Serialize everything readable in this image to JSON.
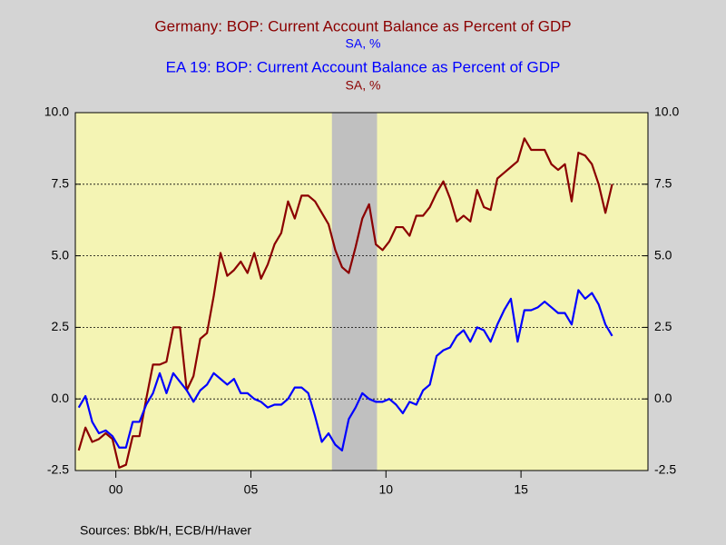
{
  "chart_data": {
    "type": "line",
    "sources": "Sources:  Bbk/H, ECB/H/Haver",
    "x": [
      1998.625,
      1998.875,
      1999.125,
      1999.375,
      1999.625,
      1999.875,
      2000.125,
      2000.375,
      2000.625,
      2000.875,
      2001.125,
      2001.375,
      2001.625,
      2001.875,
      2002.125,
      2002.375,
      2002.625,
      2002.875,
      2003.125,
      2003.375,
      2003.625,
      2003.875,
      2004.125,
      2004.375,
      2004.625,
      2004.875,
      2005.125,
      2005.375,
      2005.625,
      2005.875,
      2006.125,
      2006.375,
      2006.625,
      2006.875,
      2007.125,
      2007.375,
      2007.625,
      2007.875,
      2008.125,
      2008.375,
      2008.625,
      2008.875,
      2009.125,
      2009.375,
      2009.625,
      2009.875,
      2010.125,
      2010.375,
      2010.625,
      2010.875,
      2011.125,
      2011.375,
      2011.625,
      2011.875,
      2012.125,
      2012.375,
      2012.625,
      2012.875,
      2013.125,
      2013.375,
      2013.625,
      2013.875,
      2014.125,
      2014.375,
      2014.625,
      2014.875,
      2015.125,
      2015.375,
      2015.625,
      2015.875,
      2016.125,
      2016.375,
      2016.625,
      2016.875,
      2017.125,
      2017.375,
      2017.625,
      2017.875,
      2018.125,
      2018.375
    ],
    "series": [
      {
        "name": "Germany: BOP: Current Account Balance as Percent of GDP",
        "units": "SA, %",
        "color": "#8b0000",
        "values": [
          -1.8,
          -1.0,
          -1.5,
          -1.4,
          -1.2,
          -1.4,
          -2.4,
          -2.3,
          -1.3,
          -1.3,
          0.0,
          1.2,
          1.2,
          1.3,
          2.5,
          2.5,
          0.3,
          0.8,
          2.1,
          2.3,
          3.6,
          5.1,
          4.3,
          4.5,
          4.8,
          4.4,
          5.1,
          4.2,
          4.7,
          5.4,
          5.8,
          6.9,
          6.3,
          7.1,
          7.1,
          6.9,
          6.5,
          6.1,
          5.2,
          4.6,
          4.4,
          5.3,
          6.3,
          6.8,
          5.4,
          5.2,
          5.5,
          6.0,
          6.0,
          5.7,
          6.4,
          6.4,
          6.7,
          7.2,
          7.6,
          7.0,
          6.2,
          6.4,
          6.2,
          7.3,
          6.7,
          6.6,
          7.7,
          7.9,
          8.1,
          8.3,
          9.1,
          8.7,
          8.7,
          8.7,
          8.2,
          8.0,
          8.2,
          6.9,
          8.6,
          8.5,
          8.2,
          7.5,
          6.5,
          7.5
        ]
      },
      {
        "name": "EA 19: BOP: Current Account Balance as Percent of GDP",
        "units": "SA, %",
        "color": "#0000ff",
        "values": [
          -0.3,
          0.1,
          -0.8,
          -1.2,
          -1.1,
          -1.3,
          -1.7,
          -1.7,
          -0.8,
          -0.8,
          -0.2,
          0.2,
          0.9,
          0.2,
          0.9,
          0.6,
          0.3,
          -0.1,
          0.3,
          0.5,
          0.9,
          0.7,
          0.5,
          0.7,
          0.2,
          0.2,
          0.0,
          -0.1,
          -0.3,
          -0.2,
          -0.2,
          0.0,
          0.4,
          0.4,
          0.2,
          -0.6,
          -1.5,
          -1.2,
          -1.6,
          -1.8,
          -0.7,
          -0.3,
          0.2,
          0.0,
          -0.1,
          -0.1,
          0.0,
          -0.2,
          -0.5,
          -0.1,
          -0.2,
          0.3,
          0.5,
          1.5,
          1.7,
          1.8,
          2.2,
          2.4,
          2.0,
          2.5,
          2.4,
          2.0,
          2.6,
          3.1,
          3.5,
          2.0,
          3.1,
          3.1,
          3.2,
          3.4,
          3.2,
          3.0,
          3.0,
          2.6,
          3.8,
          3.5,
          3.7,
          3.3,
          2.6,
          2.2
        ]
      }
    ],
    "shaded_periods": [
      [
        2008.0,
        2009.67
      ]
    ],
    "xlim": [
      1998.5,
      2019.7
    ],
    "xticks": [
      {
        "value": 2000,
        "label": "00"
      },
      {
        "value": 2005,
        "label": "05"
      },
      {
        "value": 2010,
        "label": "10"
      },
      {
        "value": 2015,
        "label": "15"
      }
    ],
    "ylim": [
      -2.5,
      10
    ],
    "yticks": [
      -2.5,
      {
        "value": 0,
        "label": "0.0"
      },
      2.5,
      {
        "value": 5,
        "label": "5.0"
      },
      7.5,
      {
        "value": 10,
        "label": "10.0"
      }
    ],
    "grid": true
  }
}
